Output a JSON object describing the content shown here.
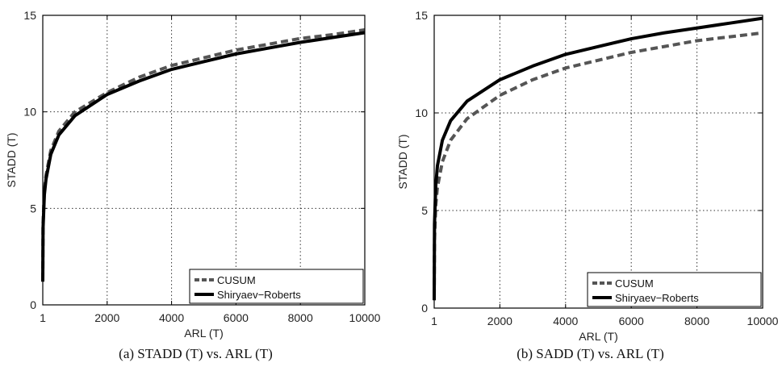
{
  "chart_data": [
    {
      "type": "line",
      "caption": "(a) STADD (T) vs. ARL (T)",
      "xlabel": "ARL (T)",
      "ylabel": "STADD (T)",
      "xlim": [
        1,
        10000
      ],
      "ylim": [
        0,
        15
      ],
      "xticks": [
        "1",
        "2000",
        "4000",
        "6000",
        "8000",
        "10000"
      ],
      "yticks": [
        "0",
        "5",
        "10",
        "15"
      ],
      "grid": true,
      "legend_position": "bottom-right",
      "series": [
        {
          "name": "CUSUM",
          "style": "dashed",
          "color": "#555555",
          "x": [
            1,
            10,
            50,
            100,
            250,
            500,
            1000,
            2000,
            3000,
            4000,
            5000,
            6000,
            7000,
            8000,
            9000,
            10000
          ],
          "y": [
            1.3,
            4.2,
            5.9,
            6.7,
            8.0,
            9.0,
            10.0,
            11.0,
            11.8,
            12.4,
            12.8,
            13.2,
            13.5,
            13.8,
            14.0,
            14.25
          ]
        },
        {
          "name": "Shiryaev−Roberts",
          "style": "solid",
          "color": "#000000",
          "x": [
            1,
            10,
            50,
            100,
            250,
            500,
            1000,
            2000,
            3000,
            4000,
            5000,
            6000,
            7000,
            8000,
            9000,
            10000
          ],
          "y": [
            1.2,
            4.0,
            5.7,
            6.5,
            7.8,
            8.8,
            9.8,
            10.9,
            11.6,
            12.2,
            12.6,
            13.0,
            13.3,
            13.6,
            13.85,
            14.1
          ]
        }
      ]
    },
    {
      "type": "line",
      "caption": "(b) SADD (T) vs. ARL (T)",
      "xlabel": "ARL (T)",
      "ylabel": "STADD (T)",
      "xlim": [
        1,
        10000
      ],
      "ylim": [
        0,
        15
      ],
      "xticks": [
        "1",
        "2000",
        "4000",
        "6000",
        "8000",
        "10000"
      ],
      "yticks": [
        "0",
        "5",
        "10",
        "15"
      ],
      "grid": true,
      "legend_position": "bottom-right",
      "series": [
        {
          "name": "CUSUM",
          "style": "dashed",
          "color": "#555555",
          "x": [
            1,
            10,
            50,
            100,
            250,
            500,
            1000,
            2000,
            3000,
            4000,
            5000,
            6000,
            7000,
            8000,
            9000,
            10000
          ],
          "y": [
            0.6,
            3.5,
            5.3,
            6.2,
            7.5,
            8.6,
            9.7,
            10.9,
            11.7,
            12.3,
            12.7,
            13.1,
            13.4,
            13.7,
            13.9,
            14.1
          ]
        },
        {
          "name": "Shiryaev−Roberts",
          "style": "solid",
          "color": "#000000",
          "x": [
            1,
            10,
            50,
            100,
            250,
            500,
            1000,
            2000,
            3000,
            4000,
            5000,
            6000,
            7000,
            8000,
            9000,
            10000
          ],
          "y": [
            0.4,
            4.3,
            6.3,
            7.3,
            8.6,
            9.6,
            10.6,
            11.7,
            12.4,
            13.0,
            13.4,
            13.8,
            14.1,
            14.35,
            14.6,
            14.85
          ]
        }
      ]
    }
  ]
}
